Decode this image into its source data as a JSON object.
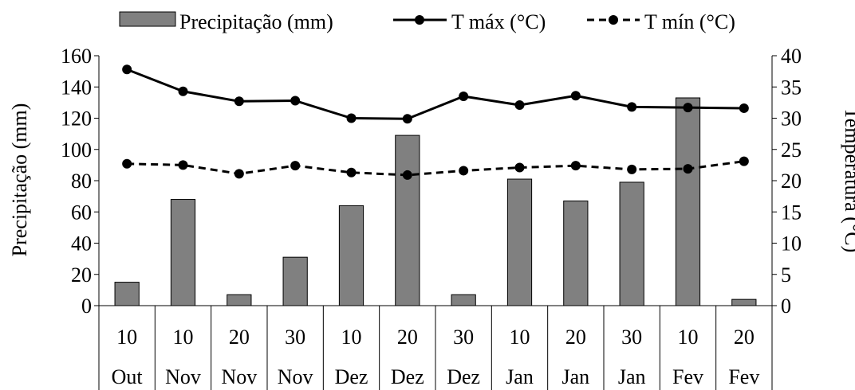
{
  "chart_data": {
    "type": "bar",
    "categories": [
      {
        "day": "10",
        "month": "Out"
      },
      {
        "day": "10",
        "month": "Nov"
      },
      {
        "day": "20",
        "month": "Nov"
      },
      {
        "day": "30",
        "month": "Nov"
      },
      {
        "day": "10",
        "month": "Dez"
      },
      {
        "day": "20",
        "month": "Dez"
      },
      {
        "day": "30",
        "month": "Dez"
      },
      {
        "day": "10",
        "month": "Jan"
      },
      {
        "day": "20",
        "month": "Jan"
      },
      {
        "day": "30",
        "month": "Jan"
      },
      {
        "day": "10",
        "month": "Fev"
      },
      {
        "day": "20",
        "month": "Fev"
      }
    ],
    "series": [
      {
        "name": "Precipitação (mm)",
        "type": "bar",
        "axis": "left",
        "color": "#808080",
        "values": [
          15,
          68,
          7,
          31,
          64,
          109,
          7,
          81,
          67,
          79,
          133,
          4
        ]
      },
      {
        "name": "T máx (°C)",
        "type": "line",
        "axis": "right",
        "style": "solid",
        "color": "#000000",
        "values": [
          37.8,
          34.3,
          32.7,
          32.8,
          30,
          29.9,
          33.5,
          32.1,
          33.6,
          31.8,
          31.7,
          31.6
        ]
      },
      {
        "name": "T mín (°C)",
        "type": "line",
        "axis": "right",
        "style": "dashed",
        "color": "#000000",
        "values": [
          22.7,
          22.5,
          21.1,
          22.4,
          21.3,
          20.9,
          21.6,
          22.1,
          22.4,
          21.8,
          21.9,
          23.1
        ]
      }
    ],
    "ylabel": "Precipitação (mm)",
    "y2label": "Temperatura (°C)",
    "ylim": [
      0,
      160
    ],
    "yticks": [
      "0",
      "20",
      "40",
      "60",
      "80",
      "100",
      "120",
      "140",
      "160"
    ],
    "y2lim": [
      0,
      40
    ],
    "y2ticks": [
      "0",
      "5",
      "10",
      "15",
      "20",
      "25",
      "30",
      "35",
      "40"
    ],
    "grid": false,
    "legend_position": "top"
  }
}
